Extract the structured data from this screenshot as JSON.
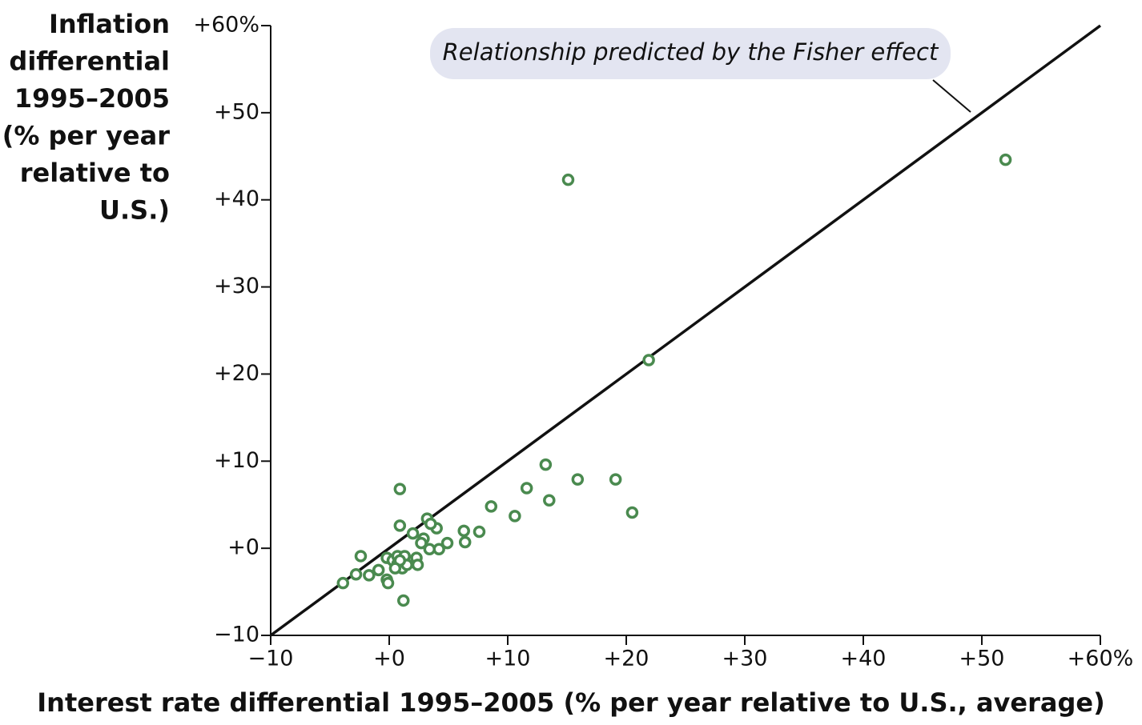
{
  "chart_data": {
    "type": "scatter",
    "y_label": [
      "Inflation",
      "differential",
      "1995–2005",
      "(% per year",
      "relative to",
      "U.S.)"
    ],
    "x_label": "Interest rate differential 1995–2005 (% per year relative to U.S., average)",
    "annotation": "Relationship predicted by the Fisher effect",
    "xlim": [
      -10,
      60
    ],
    "ylim": [
      -10,
      60
    ],
    "xticks": [
      {
        "value": -10,
        "label": "−10"
      },
      {
        "value": 0,
        "label": "+0"
      },
      {
        "value": 10,
        "label": "+10"
      },
      {
        "value": 20,
        "label": "+20"
      },
      {
        "value": 30,
        "label": "+30"
      },
      {
        "value": 40,
        "label": "+40"
      },
      {
        "value": 50,
        "label": "+50"
      },
      {
        "value": 60,
        "label": "+60%"
      }
    ],
    "yticks": [
      {
        "value": -10,
        "label": "−10"
      },
      {
        "value": 0,
        "label": "+0"
      },
      {
        "value": 10,
        "label": "+10"
      },
      {
        "value": 20,
        "label": "+20"
      },
      {
        "value": 30,
        "label": "+30"
      },
      {
        "value": 40,
        "label": "+40"
      },
      {
        "value": 50,
        "label": "+50"
      },
      {
        "value": 60,
        "label": "+60%"
      }
    ],
    "color": "#4a8a4f",
    "x": [
      15.1,
      52.0,
      21.9,
      13.2,
      11.6,
      13.5,
      15.9,
      19.1,
      20.5,
      10.6,
      8.6,
      7.6,
      6.3,
      6.4,
      4.9,
      4.2,
      4.0,
      3.2,
      3.5,
      3.4,
      2.9,
      2.0,
      2.7,
      0.9,
      0.9,
      -2.4,
      -2.8,
      -3.9,
      -1.7,
      -0.9,
      -0.2,
      -0.2,
      -0.1,
      0.3,
      0.7,
      1.3,
      0.7,
      1.1,
      1.5,
      0.9,
      2.3,
      2.4,
      1.2,
      0.5
    ],
    "values": [
      42.3,
      44.6,
      21.6,
      9.6,
      6.9,
      5.5,
      7.9,
      7.9,
      4.1,
      3.7,
      4.8,
      1.9,
      2.0,
      0.7,
      0.6,
      -0.1,
      2.3,
      3.4,
      2.8,
      -0.1,
      1.1,
      1.7,
      0.6,
      6.8,
      2.6,
      -0.9,
      -3.0,
      -4.0,
      -3.1,
      -2.5,
      -1.1,
      -3.6,
      -4.0,
      -1.4,
      -0.9,
      -0.9,
      -1.8,
      -2.3,
      -1.9,
      -1.4,
      -1.1,
      -1.9,
      -6.0,
      -2.3
    ]
  }
}
